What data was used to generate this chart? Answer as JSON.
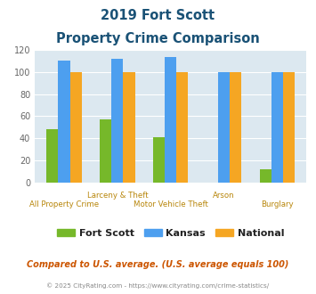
{
  "title_line1": "2019 Fort Scott",
  "title_line2": "Property Crime Comparison",
  "groups": [
    {
      "label": "All Property Crime",
      "fort_scott": 48,
      "kansas": 110,
      "national": 100
    },
    {
      "label": "Larceny & Theft",
      "fort_scott": 57,
      "kansas": 112,
      "national": 100
    },
    {
      "label": "Motor Vehicle Theft",
      "fort_scott": 41,
      "kansas": 114,
      "national": 100
    },
    {
      "label": "Arson",
      "fort_scott": 0,
      "kansas": 100,
      "national": 100
    },
    {
      "label": "Burglary",
      "fort_scott": 12,
      "kansas": 100,
      "national": 100
    }
  ],
  "color_fort_scott": "#76b82a",
  "color_kansas": "#4d9fef",
  "color_national": "#f5a623",
  "ylim": [
    0,
    120
  ],
  "yticks": [
    0,
    20,
    40,
    60,
    80,
    100,
    120
  ],
  "bg_color": "#dce8f0",
  "title_color": "#1a5276",
  "xlabel_color": "#b8860b",
  "footer_note": "Compared to U.S. average. (U.S. average equals 100)",
  "footer_copy": "© 2025 CityRating.com - https://www.cityrating.com/crime-statistics/",
  "footer_link_color": "#4d9fef",
  "legend_labels": [
    "Fort Scott",
    "Kansas",
    "National"
  ],
  "bar_width": 0.22
}
